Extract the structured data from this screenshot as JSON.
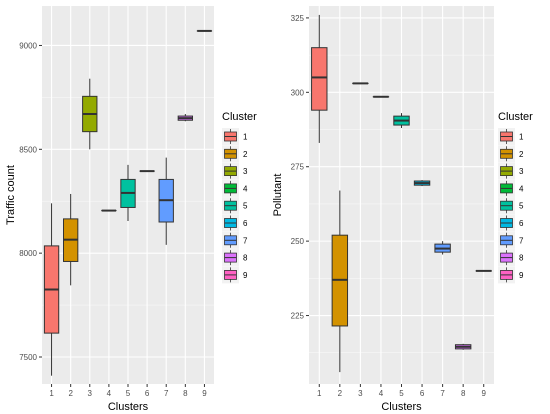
{
  "chart_data": [
    {
      "type": "boxplot",
      "xlabel": "Clusters",
      "ylabel": "Traffic count",
      "categories": [
        "1",
        "2",
        "3",
        "4",
        "5",
        "6",
        "7",
        "8",
        "9"
      ],
      "yticks": [
        7500,
        8000,
        8500,
        9000
      ],
      "ylim": [
        7370,
        9190
      ],
      "grid": true,
      "legend_title": "Cluster",
      "legend_position": "right",
      "boxes": [
        {
          "cluster": "1",
          "min": 7410,
          "q1": 7615,
          "median": 7825,
          "q3": 8035,
          "max": 8240
        },
        {
          "cluster": "2",
          "min": 7845,
          "q1": 7960,
          "median": 8065,
          "q3": 8165,
          "max": 8285
        },
        {
          "cluster": "3",
          "min": 8500,
          "q1": 8585,
          "median": 8670,
          "q3": 8755,
          "max": 8840
        },
        {
          "cluster": "4",
          "min": 8205,
          "q1": 8205,
          "median": 8205,
          "q3": 8205,
          "max": 8205
        },
        {
          "cluster": "5",
          "min": 8155,
          "q1": 8220,
          "median": 8290,
          "q3": 8355,
          "max": 8425
        },
        {
          "cluster": "6",
          "min": 8395,
          "q1": 8395,
          "median": 8395,
          "q3": 8395,
          "max": 8395
        },
        {
          "cluster": "7",
          "min": 8040,
          "q1": 8150,
          "median": 8255,
          "q3": 8355,
          "max": 8460
        },
        {
          "cluster": "8",
          "min": 8635,
          "q1": 8640,
          "median": 8650,
          "q3": 8660,
          "max": 8670
        },
        {
          "cluster": "9",
          "min": 9070,
          "q1": 9070,
          "median": 9070,
          "q3": 9070,
          "max": 9070
        }
      ]
    },
    {
      "type": "boxplot",
      "xlabel": "Clusters",
      "ylabel": "Pollutant",
      "categories": [
        "1",
        "2",
        "3",
        "4",
        "5",
        "6",
        "7",
        "8",
        "9"
      ],
      "yticks": [
        225,
        250,
        275,
        300,
        325
      ],
      "ylim": [
        202,
        329
      ],
      "grid": true,
      "legend_title": "Cluster",
      "legend_position": "right",
      "boxes": [
        {
          "cluster": "1",
          "min": 283,
          "q1": 294,
          "median": 305,
          "q3": 315,
          "max": 326
        },
        {
          "cluster": "2",
          "min": 206,
          "q1": 221.5,
          "median": 237,
          "q3": 252,
          "max": 267
        },
        {
          "cluster": "3",
          "min": 303,
          "q1": 303,
          "median": 303,
          "q3": 303,
          "max": 303
        },
        {
          "cluster": "4",
          "min": 298.5,
          "q1": 298.5,
          "median": 298.5,
          "q3": 298.5,
          "max": 298.5
        },
        {
          "cluster": "5",
          "min": 288,
          "q1": 289,
          "median": 290.5,
          "q3": 292,
          "max": 293
        },
        {
          "cluster": "6",
          "min": 268.5,
          "q1": 268.8,
          "median": 269.5,
          "q3": 270.2,
          "max": 270.5
        },
        {
          "cluster": "7",
          "min": 245.5,
          "q1": 246.3,
          "median": 247.5,
          "q3": 249,
          "max": 250
        },
        {
          "cluster": "8",
          "min": 213.5,
          "q1": 213.8,
          "median": 214.5,
          "q3": 215.2,
          "max": 215.5
        },
        {
          "cluster": "9",
          "min": 240,
          "q1": 240,
          "median": 240,
          "q3": 240,
          "max": 240
        }
      ]
    }
  ],
  "legend": {
    "title": "Cluster",
    "entries": [
      "1",
      "2",
      "3",
      "4",
      "5",
      "6",
      "7",
      "8",
      "9"
    ]
  },
  "colors": {
    "cluster_fills": [
      "#F8766D",
      "#D39200",
      "#93AA00",
      "#00BA38",
      "#00C19F",
      "#00B9E3",
      "#619CFF",
      "#DB72FB",
      "#FF61C3"
    ],
    "panel_background": "#EBEBEB",
    "grid_major": "#FFFFFF",
    "outline": "#333333"
  }
}
